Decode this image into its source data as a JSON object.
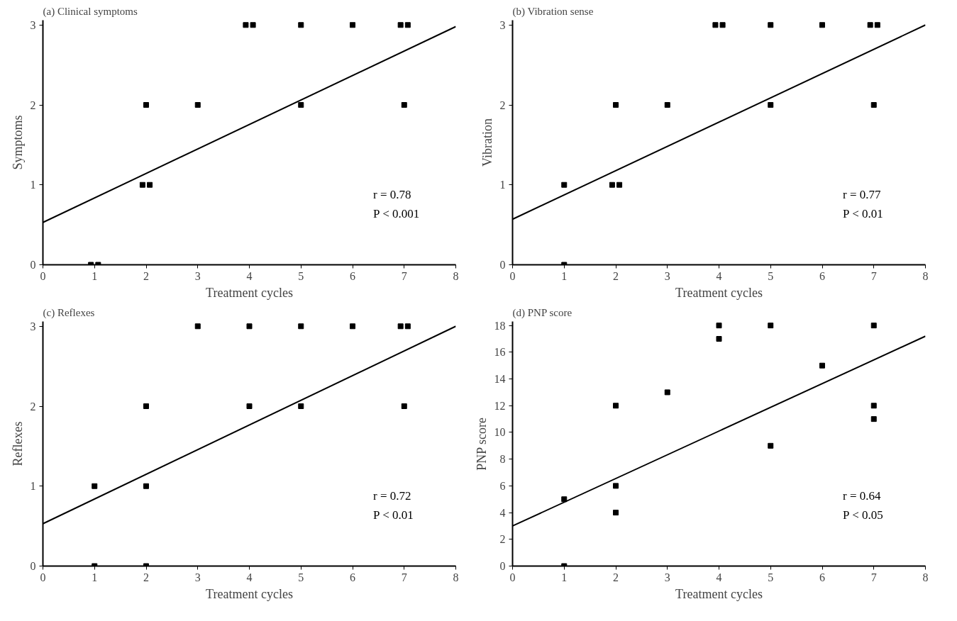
{
  "chart_data": [
    {
      "type": "scatter",
      "title": "(a)  Clinical symptoms",
      "xlabel": "Treatment cycles",
      "ylabel": "Symptoms",
      "xlim": [
        0,
        8
      ],
      "ylim": [
        0,
        3.06
      ],
      "xticks": [
        0,
        1,
        2,
        3,
        4,
        5,
        6,
        7,
        8
      ],
      "yticks": [
        0,
        1,
        2,
        3
      ],
      "annotations": [
        "r = 0.78",
        "P < 0.001"
      ],
      "series": [
        {
          "marker": "square",
          "color": "#000000",
          "x": [
            0.93,
            1.07,
            1.93,
            2.07,
            2,
            3,
            3.93,
            4.07,
            5,
            5,
            6,
            6.93,
            7.07,
            7
          ],
          "values": [
            0,
            0,
            1,
            1,
            2,
            2,
            3,
            3,
            3,
            2,
            3,
            3,
            3,
            2
          ]
        },
        {
          "type": "line",
          "color": "#000000",
          "x": [
            0,
            8
          ],
          "values": [
            0.53,
            2.98
          ]
        }
      ]
    },
    {
      "type": "scatter",
      "title": "(b)  Vibration sense",
      "xlabel": "Treatment cycles",
      "ylabel": "Vibration",
      "xlim": [
        0,
        8
      ],
      "ylim": [
        0,
        3.06
      ],
      "xticks": [
        0,
        1,
        2,
        3,
        4,
        5,
        6,
        7,
        8
      ],
      "yticks": [
        0,
        1,
        2,
        3
      ],
      "annotations": [
        "r = 0.77",
        "P < 0.01"
      ],
      "series": [
        {
          "marker": "square",
          "color": "#000000",
          "x": [
            1,
            1,
            1.93,
            2.07,
            2,
            3,
            3.93,
            4.07,
            5,
            5,
            6,
            6.93,
            7.07,
            7
          ],
          "values": [
            0,
            1,
            1,
            1,
            2,
            2,
            3,
            3,
            3,
            2,
            3,
            3,
            3,
            2
          ]
        },
        {
          "type": "line",
          "color": "#000000",
          "x": [
            0,
            8
          ],
          "values": [
            0.57,
            3.0
          ]
        }
      ]
    },
    {
      "type": "scatter",
      "title": "(c)  Reflexes",
      "xlabel": "Treatment cycles",
      "ylabel": "Reflexes",
      "xlim": [
        0,
        8
      ],
      "ylim": [
        0,
        3.06
      ],
      "xticks": [
        0,
        1,
        2,
        3,
        4,
        5,
        6,
        7,
        8
      ],
      "yticks": [
        0,
        1,
        2,
        3
      ],
      "annotations": [
        "r = 0.72",
        "P < 0.01"
      ],
      "series": [
        {
          "marker": "square",
          "color": "#000000",
          "x": [
            1,
            2,
            1,
            2,
            2,
            4,
            5,
            7,
            3,
            4,
            5,
            6,
            6.93,
            7.07
          ],
          "values": [
            0,
            0,
            1,
            1,
            2,
            2,
            2,
            2,
            3,
            3,
            3,
            3,
            3,
            3
          ]
        },
        {
          "type": "line",
          "color": "#000000",
          "x": [
            0,
            8
          ],
          "values": [
            0.53,
            3.0
          ]
        }
      ]
    },
    {
      "type": "scatter",
      "title": "(d)  PNP score",
      "xlabel": "Treatment cycles",
      "ylabel": "PNP score",
      "xlim": [
        0,
        8
      ],
      "ylim": [
        0,
        18.3
      ],
      "xticks": [
        0,
        1,
        2,
        3,
        4,
        5,
        6,
        7,
        8
      ],
      "yticks": [
        0,
        2,
        4,
        6,
        8,
        10,
        12,
        14,
        16,
        18
      ],
      "annotations": [
        "r = 0.64",
        "P < 0.05"
      ],
      "series": [
        {
          "marker": "square",
          "color": "#000000",
          "x": [
            1,
            1,
            2,
            2,
            2,
            3,
            4,
            4,
            5,
            5,
            6,
            7,
            7,
            7
          ],
          "values": [
            0,
            5,
            4,
            6,
            12,
            13,
            17,
            18,
            18,
            9,
            15,
            18,
            12,
            11
          ]
        },
        {
          "type": "line",
          "color": "#000000",
          "x": [
            0,
            8
          ],
          "values": [
            3.0,
            17.2
          ]
        }
      ]
    }
  ]
}
